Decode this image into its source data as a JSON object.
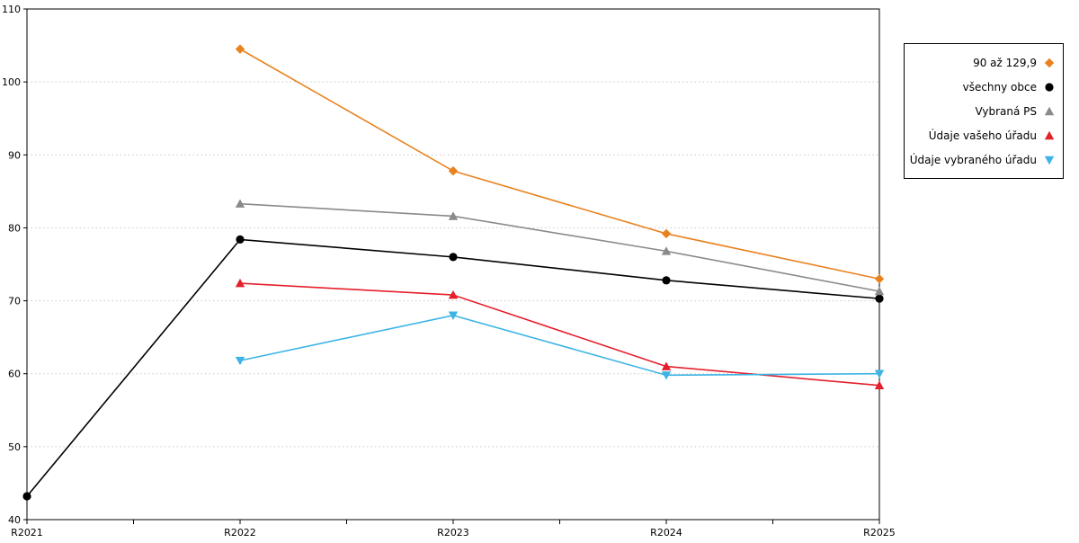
{
  "chart_data": {
    "type": "line",
    "title": "",
    "xlabel": "",
    "ylabel": "",
    "x_categories": [
      "R2021",
      "R2022",
      "R2023",
      "R2024",
      "R2025"
    ],
    "y_ticks": [
      40,
      50,
      60,
      70,
      80,
      90,
      100,
      110
    ],
    "ylim": [
      40,
      110
    ],
    "grid": "horizontal-dotted",
    "legend_position": "outside-top-right",
    "colors": {
      "grid": "#c9c9c9",
      "axis": "#000000"
    },
    "series": [
      {
        "name": "90 až 129,9",
        "marker": "diamond",
        "color": "#e8821f",
        "values": [
          null,
          104.5,
          87.8,
          79.2,
          73.0
        ]
      },
      {
        "name": "všechny obce",
        "marker": "circle",
        "color": "#000000",
        "values": [
          43.2,
          78.4,
          76.0,
          72.8,
          70.3
        ]
      },
      {
        "name": "Vybraná PS",
        "marker": "triangle-up",
        "color": "#8a8a8a",
        "values": [
          null,
          83.3,
          81.6,
          76.8,
          71.3
        ]
      },
      {
        "name": "Údaje vašeho úřadu",
        "marker": "triangle-up",
        "color": "#e4202c",
        "values": [
          null,
          72.4,
          70.8,
          61.0,
          58.4
        ]
      },
      {
        "name": "Údaje vybraného úřadu",
        "marker": "triangle-down",
        "color": "#3cb4e5",
        "values": [
          null,
          61.8,
          68.0,
          59.8,
          60.0
        ]
      }
    ]
  }
}
